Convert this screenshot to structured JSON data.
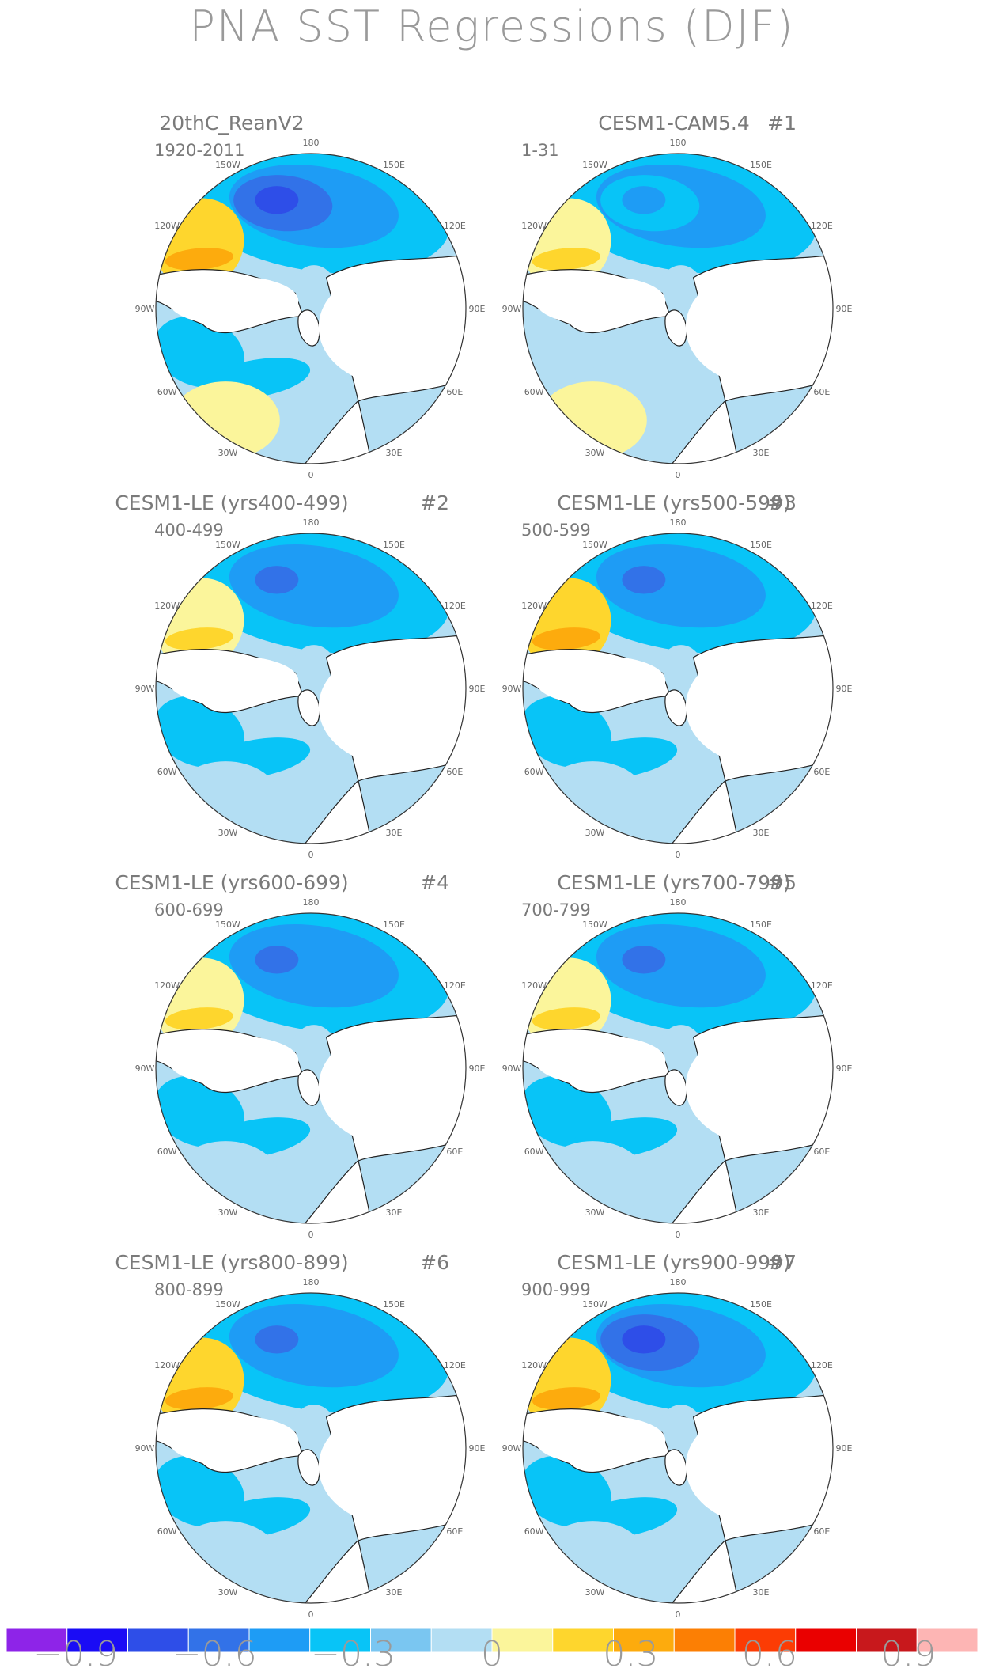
{
  "figure": {
    "title": "PNA SST Regressions (DJF)"
  },
  "chart_data": {
    "type": "heatmap",
    "projection": "north polar stereographic",
    "variable": "SST regression on PNA index",
    "season": "DJF",
    "panels": [
      {
        "title": "20thC_ReanV2",
        "tag": "",
        "years": "1920-2011",
        "features": {
          "north_pacific_min": -0.7,
          "west_coast_max": 0.5,
          "north_atlantic": -0.3,
          "tropical_atlantic": 0.2
        }
      },
      {
        "title": "CESM1-CAM5.4",
        "tag": "#1",
        "years": "1-31",
        "features": {
          "north_pacific_min": -0.4,
          "west_coast_max": 0.4,
          "north_atlantic": 0.1,
          "tropical_atlantic": 0.2
        }
      },
      {
        "title": "CESM1-LE (yrs400-499)",
        "tag": "#2",
        "years": "400-499",
        "features": {
          "north_pacific_min": -0.6,
          "west_coast_max": 0.4,
          "north_atlantic": -0.3,
          "tropical_atlantic": 0.1
        }
      },
      {
        "title": "CESM1-LE (yrs500-599)",
        "tag": "#3",
        "years": "500-599",
        "features": {
          "north_pacific_min": -0.6,
          "west_coast_max": 0.5,
          "north_atlantic": -0.3,
          "tropical_atlantic": 0.1
        }
      },
      {
        "title": "CESM1-LE (yrs600-699)",
        "tag": "#4",
        "years": "600-699",
        "features": {
          "north_pacific_min": -0.6,
          "west_coast_max": 0.4,
          "north_atlantic": -0.3,
          "tropical_atlantic": 0.1
        }
      },
      {
        "title": "CESM1-LE (yrs700-799)",
        "tag": "#5",
        "years": "700-799",
        "features": {
          "north_pacific_min": -0.6,
          "west_coast_max": 0.4,
          "north_atlantic": -0.3,
          "tropical_atlantic": 0.1
        }
      },
      {
        "title": "CESM1-LE (yrs800-899)",
        "tag": "#6",
        "years": "800-899",
        "features": {
          "north_pacific_min": -0.6,
          "west_coast_max": 0.5,
          "north_atlantic": -0.3,
          "tropical_atlantic": 0.1
        }
      },
      {
        "title": "CESM1-LE (yrs900-999)",
        "tag": "#7",
        "years": "900-999",
        "features": {
          "north_pacific_min": -0.7,
          "west_coast_max": 0.5,
          "north_atlantic": -0.3,
          "tropical_atlantic": 0.1
        }
      }
    ],
    "longitude_labels": [
      "180",
      "150E",
      "120E",
      "90E",
      "60E",
      "30E",
      "0",
      "30W",
      "60W",
      "90W",
      "120W",
      "150W"
    ],
    "colorbar": {
      "colors": [
        "#8e24e8",
        "#1a0cf5",
        "#2e4ee8",
        "#3272e8",
        "#1e9cf5",
        "#08c4f7",
        "#7ac6f1",
        "#b3def3",
        "#fbf59b",
        "#fed62d",
        "#fdab0d",
        "#fc7f04",
        "#fc3c04",
        "#ea0000",
        "#c8181c",
        "#fdb5b4"
      ],
      "ticks": [
        "-0.9",
        "-0.6",
        "-0.3",
        "0",
        "0.3",
        "0.6",
        "0.9"
      ],
      "tick_values": [
        -0.9,
        -0.6,
        -0.3,
        0,
        0.3,
        0.6,
        0.9
      ],
      "range": [
        -1.05,
        1.05
      ],
      "interval": 0.15
    }
  }
}
